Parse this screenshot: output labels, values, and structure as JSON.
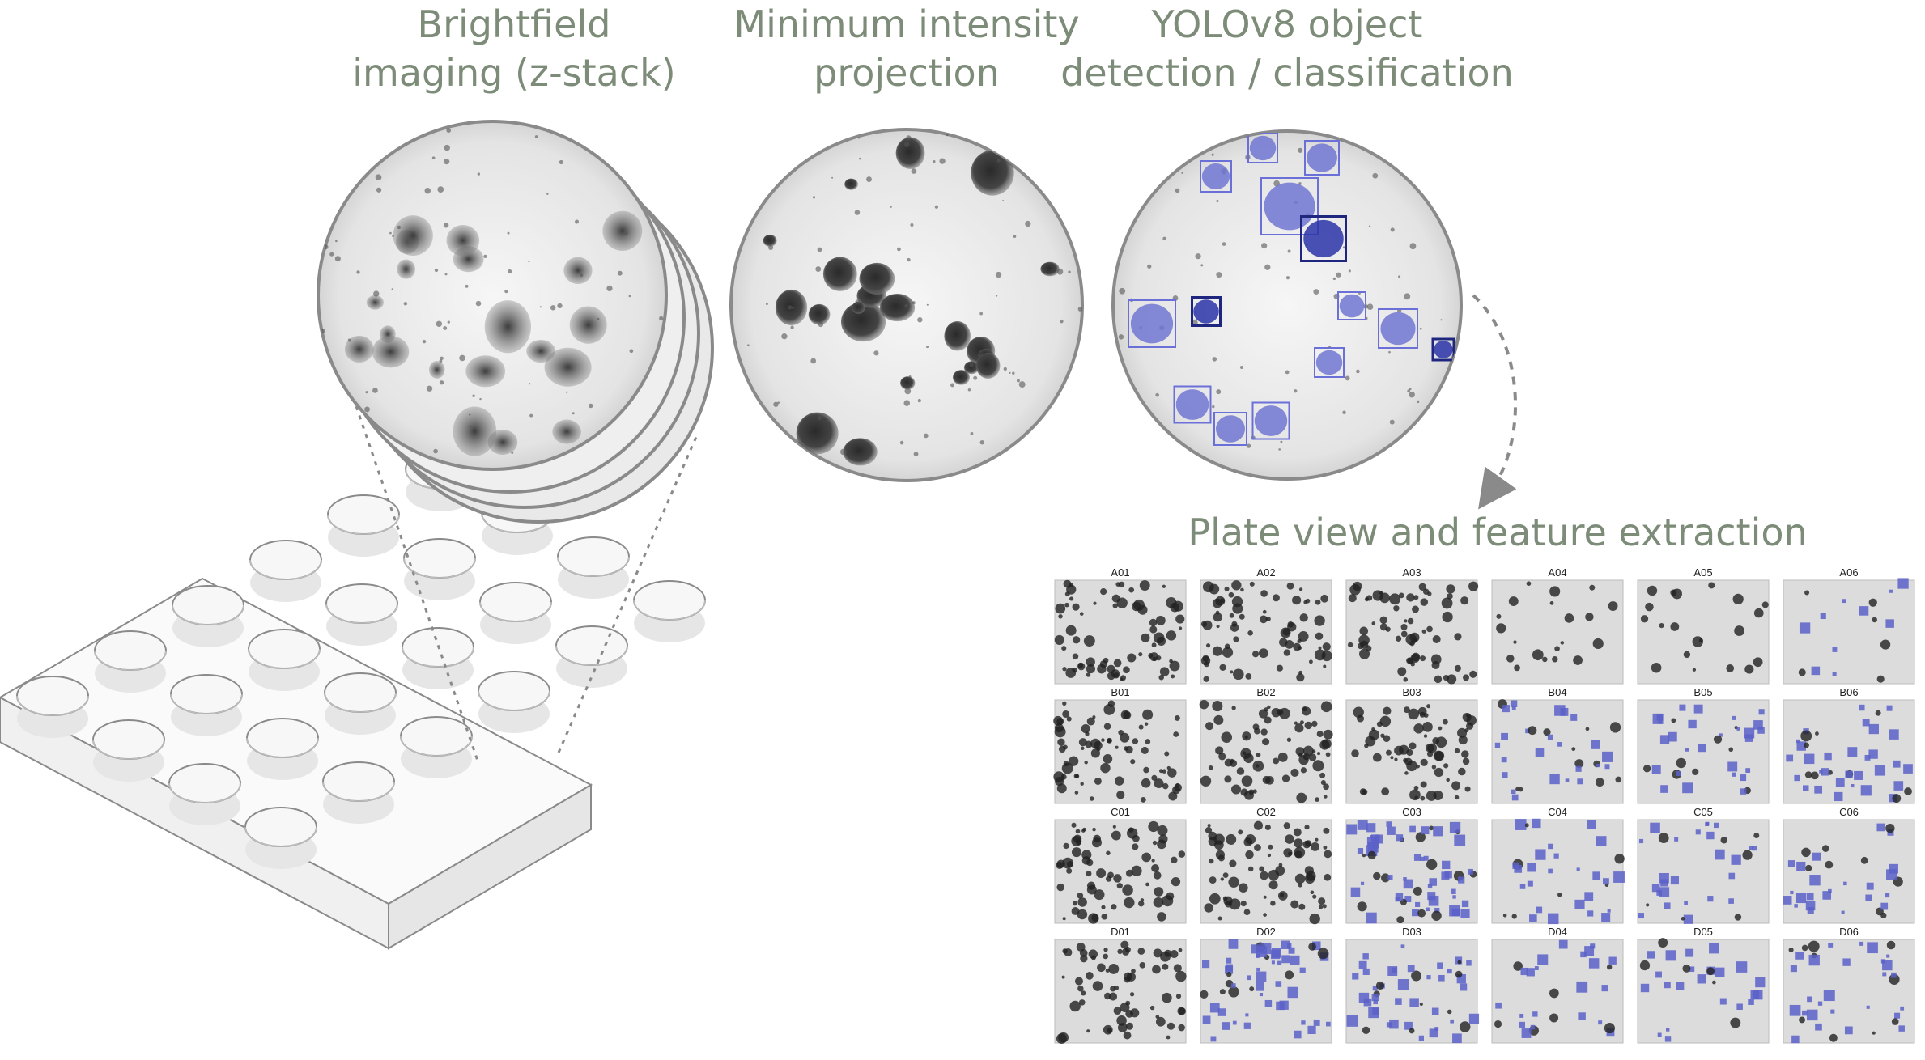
{
  "stages": {
    "brightfield": {
      "line1": "Brightfield",
      "line2": "imaging (z-stack)"
    },
    "mip": {
      "line1": "Minimum intensity",
      "line2": "projection"
    },
    "yolo": {
      "line1": "YOLOv8 object",
      "line2": "detection / classification"
    },
    "plate": {
      "title": "Plate view and feature extraction"
    }
  },
  "plate_grid": {
    "wells": [
      [
        "A01",
        "A02",
        "A03",
        "A04",
        "A05",
        "A06"
      ],
      [
        "B01",
        "B02",
        "B03",
        "B04",
        "B05",
        "B06"
      ],
      [
        "C01",
        "C02",
        "C03",
        "C04",
        "C05",
        "C06"
      ],
      [
        "D01",
        "D02",
        "D03",
        "D04",
        "D05",
        "D06"
      ]
    ],
    "density": [
      [
        0.9,
        0.9,
        0.8,
        0.25,
        0.25,
        0.2
      ],
      [
        0.95,
        0.95,
        0.9,
        0.45,
        0.45,
        0.5
      ],
      [
        0.9,
        0.95,
        0.85,
        0.4,
        0.4,
        0.4
      ],
      [
        0.85,
        0.7,
        0.6,
        0.35,
        0.35,
        0.45
      ]
    ],
    "classified": [
      [
        false,
        false,
        false,
        false,
        false,
        true
      ],
      [
        false,
        false,
        false,
        true,
        true,
        true
      ],
      [
        false,
        false,
        true,
        true,
        true,
        true
      ],
      [
        false,
        true,
        true,
        true,
        true,
        true
      ]
    ]
  },
  "colors": {
    "title_text": "#7d8c78",
    "outline": "#8a8a8a",
    "detection_box": "#5a5fc8",
    "detection_fill": "#6a70d8"
  }
}
